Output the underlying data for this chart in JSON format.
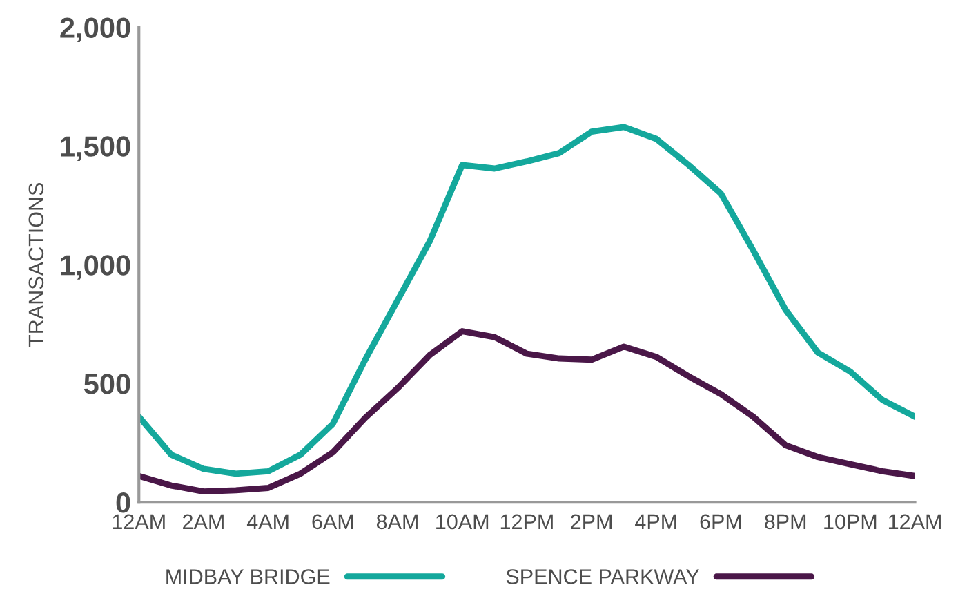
{
  "chart_data": {
    "type": "line",
    "ylabel": "TRANSACTIONS",
    "categories": [
      "12AM",
      null,
      "2AM",
      null,
      "4AM",
      null,
      "6AM",
      null,
      "8AM",
      null,
      "10AM",
      null,
      "12PM",
      null,
      "2PM",
      null,
      "4PM",
      null,
      "6PM",
      null,
      "8PM",
      null,
      "10PM",
      null,
      "12AM"
    ],
    "series": [
      {
        "name": "MIDBAY BRIDGE",
        "color": "#14a89c",
        "values": [
          360,
          200,
          140,
          120,
          130,
          200,
          330,
          600,
          850,
          1100,
          1420,
          1405,
          1435,
          1470,
          1560,
          1580,
          1530,
          1420,
          1300,
          1060,
          810,
          630,
          550,
          430,
          360
        ]
      },
      {
        "name": "SPENCE PARKWAY",
        "color": "#4a1748",
        "values": [
          110,
          70,
          45,
          50,
          60,
          120,
          210,
          355,
          480,
          620,
          720,
          695,
          625,
          605,
          600,
          655,
          612,
          530,
          455,
          360,
          240,
          190,
          160,
          130,
          110
        ]
      }
    ],
    "ylim": [
      0,
      2000
    ],
    "yticks": [
      0,
      500,
      {
        "value": 1000,
        "label": "1,000"
      },
      {
        "value": 1500,
        "label": "1,500"
      },
      {
        "value": 2000,
        "label": "2,000"
      }
    ],
    "grid": false,
    "legend": "bottom",
    "marker": "none",
    "line_style": "solid"
  }
}
